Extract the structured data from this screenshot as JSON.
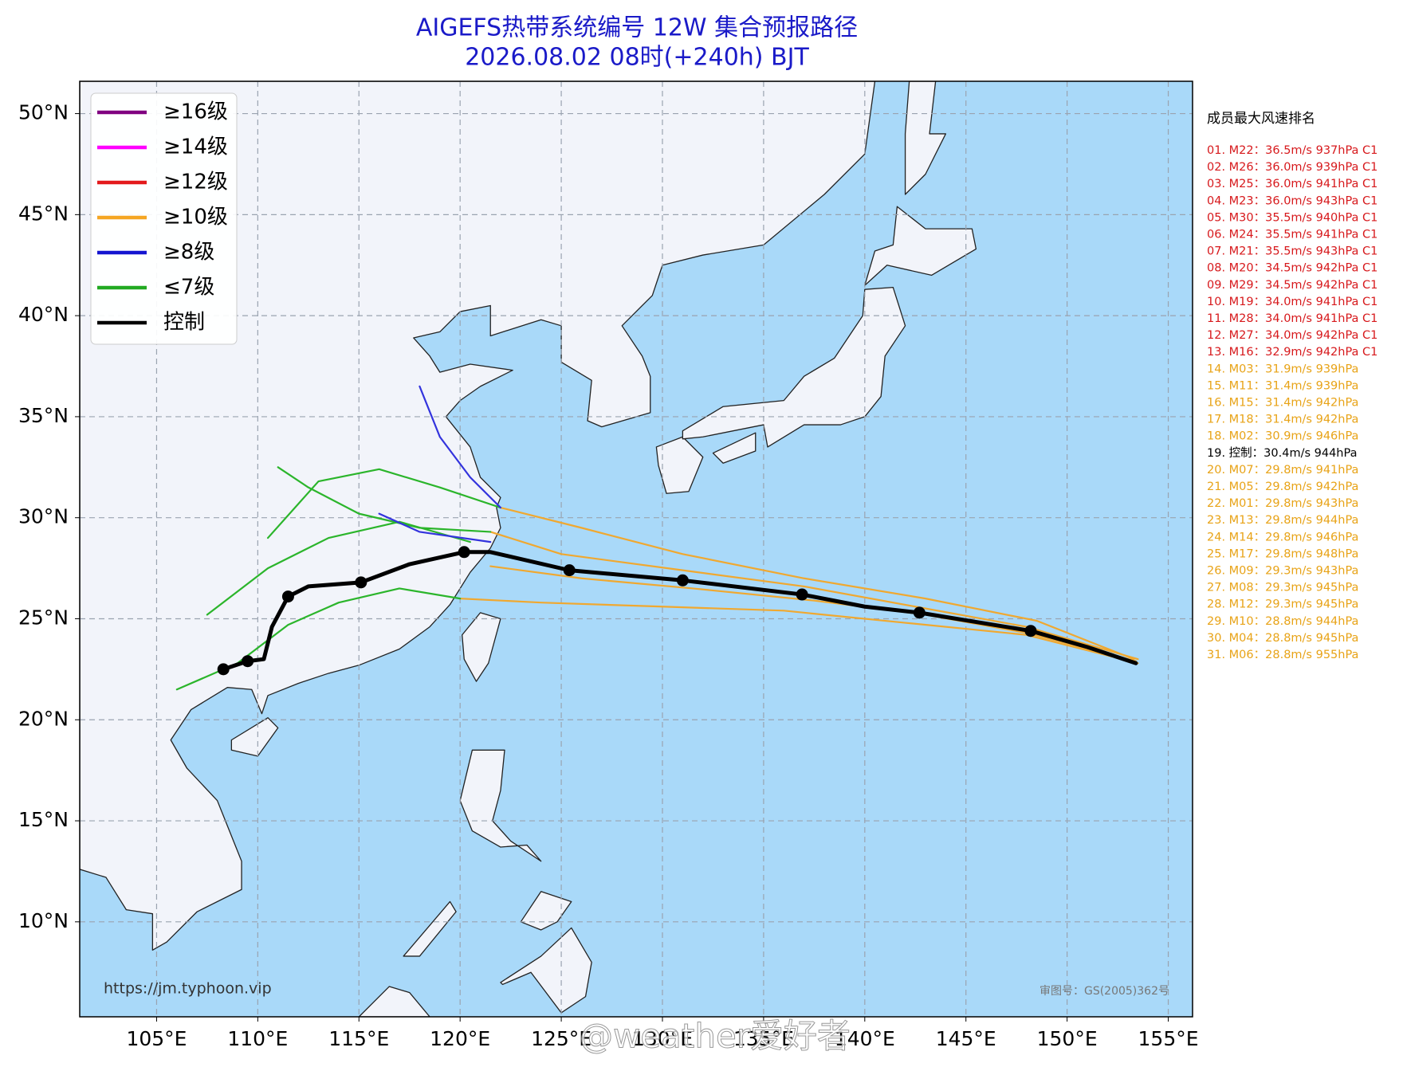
{
  "title": [
    "AIGEFS热带系统编号 12W 集合预报路径",
    "2026.08.02 08时(+240h) BJT"
  ],
  "map": {
    "xlim": [
      101.2,
      156.2
    ],
    "ylim": [
      5.3,
      51.6
    ],
    "xticks": [
      {
        "value": 105,
        "label": "105°E"
      },
      {
        "value": 110,
        "label": "110°E"
      },
      {
        "value": 115,
        "label": "115°E"
      },
      {
        "value": 120,
        "label": "120°E"
      },
      {
        "value": 125,
        "label": "125°E"
      },
      {
        "value": 130,
        "label": "130°E"
      },
      {
        "value": 135,
        "label": "135°E"
      },
      {
        "value": 140,
        "label": "140°E"
      },
      {
        "value": 145,
        "label": "145°E"
      },
      {
        "value": 150,
        "label": "150°E"
      },
      {
        "value": 155,
        "label": "155°E"
      }
    ],
    "yticks": [
      {
        "value": 10,
        "label": "10°N"
      },
      {
        "value": 15,
        "label": "15°N"
      },
      {
        "value": 20,
        "label": "20°N"
      },
      {
        "value": 25,
        "label": "25°N"
      },
      {
        "value": 30,
        "label": "30°N"
      },
      {
        "value": 35,
        "label": "35°N"
      },
      {
        "value": 40,
        "label": "40°N"
      },
      {
        "value": 45,
        "label": "45°N"
      },
      {
        "value": 50,
        "label": "50°N"
      }
    ],
    "grid": true,
    "ocean_color": "#a9d9f9",
    "members": [
      {
        "color": "#f0a830",
        "lon": [
          153.5,
          148,
          142.5,
          137,
          131,
          125,
          121.5
        ],
        "lat": [
          23,
          24.6,
          25.6,
          26.6,
          27.4,
          28.2,
          29.3
        ]
      },
      {
        "color": "#f0a830",
        "lon": [
          153.5,
          148,
          142,
          136,
          130,
          124,
          120
        ],
        "lat": [
          22.8,
          24.2,
          24.8,
          25.4,
          25.6,
          25.8,
          26
        ]
      },
      {
        "color": "#f0a830",
        "lon": [
          153.3,
          148.5,
          143,
          137,
          131,
          126,
          122
        ],
        "lat": [
          23,
          24.9,
          26,
          27,
          28.2,
          29.5,
          30.5
        ]
      },
      {
        "color": "#f0a830",
        "lon": [
          153.4,
          148,
          143,
          137.5,
          131.5,
          126,
          121.5
        ],
        "lat": [
          22.9,
          24.3,
          25.2,
          25.9,
          26.5,
          27,
          27.6
        ]
      },
      {
        "color": "#2bb52b",
        "lon": [
          121.5,
          118,
          115,
          112.5,
          111
        ],
        "lat": [
          29.3,
          29.5,
          30.2,
          31.5,
          32.5
        ]
      },
      {
        "color": "#2bb52b",
        "lon": [
          120,
          117,
          114,
          111.5,
          109,
          106
        ],
        "lat": [
          26,
          26.5,
          25.8,
          24.7,
          22.8,
          21.5
        ]
      },
      {
        "color": "#2bb52b",
        "lon": [
          120.5,
          117,
          113.5,
          110.5,
          107.5
        ],
        "lat": [
          28.8,
          29.8,
          29,
          27.5,
          25.2
        ]
      },
      {
        "color": "#2bb52b",
        "lon": [
          122,
          119,
          116,
          113,
          110.5
        ],
        "lat": [
          30.5,
          31.5,
          32.4,
          31.8,
          29
        ]
      },
      {
        "color": "#3333dd",
        "lon": [
          122,
          120.5,
          119,
          118
        ],
        "lat": [
          30.5,
          32,
          34,
          36.5
        ]
      },
      {
        "color": "#3333dd",
        "lon": [
          121.5,
          118,
          116
        ],
        "lat": [
          28.8,
          29.3,
          30.2
        ]
      }
    ],
    "control_track": {
      "color": "#000000",
      "lon": [
        108.3,
        109.5,
        110.3,
        110.7,
        111.5,
        112.5,
        115.1,
        117.5,
        120.2,
        121.5,
        125.4,
        131,
        136.9,
        140,
        142.7,
        148.2,
        151,
        153.4
      ],
      "lat": [
        22.5,
        22.9,
        23,
        24.6,
        26.1,
        26.6,
        26.8,
        27.7,
        28.3,
        28.3,
        27.4,
        26.9,
        26.2,
        25.6,
        25.3,
        24.4,
        23.6,
        22.8
      ]
    },
    "control_positions": {
      "lon": [
        108.3,
        109.5,
        111.5,
        115.1,
        120.2,
        125.4,
        131,
        136.9,
        142.7,
        148.2
      ],
      "lat": [
        22.5,
        22.9,
        26.1,
        26.8,
        28.3,
        27.4,
        26.9,
        26.2,
        25.3,
        24.4
      ]
    }
  },
  "legend": [
    {
      "label": "≥16级",
      "color": "#800080"
    },
    {
      "label": "≥14级",
      "color": "#ff00ff"
    },
    {
      "label": "≥12级",
      "color": "#e31a1c"
    },
    {
      "label": "≥10级",
      "color": "#f5a623"
    },
    {
      "label": "≥8级",
      "color": "#1515d0"
    },
    {
      "label": "≤7级",
      "color": "#22aa22"
    },
    {
      "label": "控制",
      "color": "#000000"
    }
  ],
  "ranking": {
    "title": "成员最大风速排名",
    "items": [
      {
        "text": "01. M22：36.5m/s 937hPa C1",
        "color": "#d7191c"
      },
      {
        "text": "02. M26：36.0m/s 939hPa C1",
        "color": "#d7191c"
      },
      {
        "text": "03. M25：36.0m/s 941hPa C1",
        "color": "#d7191c"
      },
      {
        "text": "04. M23：36.0m/s 943hPa C1",
        "color": "#d7191c"
      },
      {
        "text": "05. M30：35.5m/s 940hPa C1",
        "color": "#d7191c"
      },
      {
        "text": "06. M24：35.5m/s 941hPa C1",
        "color": "#d7191c"
      },
      {
        "text": "07. M21：35.5m/s 943hPa C1",
        "color": "#d7191c"
      },
      {
        "text": "08. M20：34.5m/s 942hPa C1",
        "color": "#d7191c"
      },
      {
        "text": "09. M29：34.5m/s 942hPa C1",
        "color": "#d7191c"
      },
      {
        "text": "10. M19：34.0m/s 941hPa C1",
        "color": "#d7191c"
      },
      {
        "text": "11. M28：34.0m/s 941hPa C1",
        "color": "#d7191c"
      },
      {
        "text": "12. M27：34.0m/s 942hPa C1",
        "color": "#d7191c"
      },
      {
        "text": "13. M16：32.9m/s 942hPa C1",
        "color": "#d7191c"
      },
      {
        "text": "14. M03：31.9m/s 939hPa",
        "color": "#e8a317"
      },
      {
        "text": "15. M11：31.4m/s 939hPa",
        "color": "#e8a317"
      },
      {
        "text": "16. M15：31.4m/s 942hPa",
        "color": "#e8a317"
      },
      {
        "text": "17. M18：31.4m/s 942hPa",
        "color": "#e8a317"
      },
      {
        "text": "18. M02：30.9m/s 946hPa",
        "color": "#e8a317"
      },
      {
        "text": "19. 控制：30.4m/s 944hPa",
        "color": "#000000"
      },
      {
        "text": "20. M07：29.8m/s 941hPa",
        "color": "#e8a317"
      },
      {
        "text": "21. M05：29.8m/s 942hPa",
        "color": "#e8a317"
      },
      {
        "text": "22. M01：29.8m/s 943hPa",
        "color": "#e8a317"
      },
      {
        "text": "23. M13：29.8m/s 944hPa",
        "color": "#e8a317"
      },
      {
        "text": "24. M14：29.8m/s 946hPa",
        "color": "#e8a317"
      },
      {
        "text": "25. M17：29.8m/s 948hPa",
        "color": "#e8a317"
      },
      {
        "text": "26. M09：29.3m/s 943hPa",
        "color": "#e8a317"
      },
      {
        "text": "27. M08：29.3m/s 945hPa",
        "color": "#e8a317"
      },
      {
        "text": "28. M12：29.3m/s 945hPa",
        "color": "#e8a317"
      },
      {
        "text": "29. M10：28.8m/s 944hPa",
        "color": "#e8a317"
      },
      {
        "text": "30. M04：28.8m/s 945hPa",
        "color": "#e8a317"
      },
      {
        "text": "31. M06：28.8m/s 955hPa",
        "color": "#e8a317"
      }
    ]
  },
  "source_url": "https://jm.typhoon.vip",
  "approval": "审图号：GS(2005)362号",
  "watermark": "@weather爱好者"
}
